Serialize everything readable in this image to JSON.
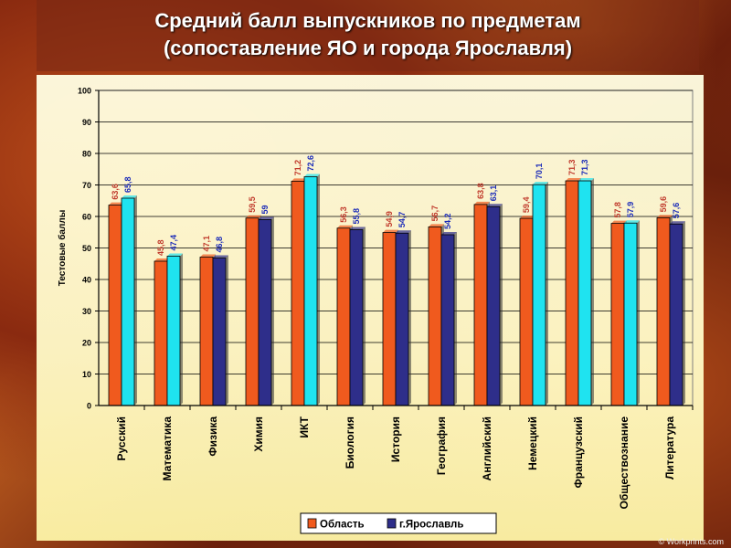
{
  "slide": {
    "title_line1": "Средний балл выпускников по предметам",
    "title_line2": "(сопоставление ЯО и города Ярославля)",
    "watermark": "© Workprints.com"
  },
  "chart_data": {
    "type": "bar",
    "ylabel": "Тестовые баллы",
    "xlabel": "",
    "ylim": [
      0,
      100
    ],
    "yticks": [
      0,
      10,
      20,
      30,
      40,
      50,
      60,
      70,
      80,
      90,
      100
    ],
    "grid": true,
    "legend_position": "bottom",
    "categories": [
      "Русский",
      "Математика",
      "Физика",
      "Химия",
      "ИКТ",
      "Биология",
      "История",
      "География",
      "Английский",
      "Немецкий",
      "Французский",
      "Обществознание",
      "Литература"
    ],
    "series": [
      {
        "name": "Область",
        "color": "#f05a1e",
        "label_color": "#c0392b",
        "values": [
          63.6,
          45.8,
          47.1,
          59.5,
          71.2,
          56.3,
          54.9,
          56.7,
          63.8,
          59.4,
          71.3,
          57.8,
          59.6
        ],
        "labels": [
          "63,6",
          "45,8",
          "47,1",
          "59,5",
          "71,2",
          "56,3",
          "54,9",
          "56,7",
          "63,8",
          "59,4",
          "71,3",
          "57,8",
          "59,6"
        ]
      },
      {
        "name": "г.Ярославль",
        "colors": [
          "#1fe3f0",
          "#1fe3f0",
          "#2e2e8a",
          "#2e2e8a",
          "#1fe3f0",
          "#2e2e8a",
          "#2e2e8a",
          "#2e2e8a",
          "#2e2e8a",
          "#1fe3f0",
          "#1fe3f0",
          "#1fe3f0",
          "#2e2e8a"
        ],
        "color": "#2e2e8a",
        "label_color": "#1a2ab8",
        "values": [
          65.8,
          47.4,
          46.8,
          59,
          72.6,
          55.8,
          54.7,
          54.2,
          63.1,
          70.1,
          71.3,
          57.9,
          57.6
        ],
        "labels": [
          "65,8",
          "47,4",
          "46,8",
          "59",
          "72,6",
          "55,8",
          "54,7",
          "54,2",
          "63,1",
          "70,1",
          "71,3",
          "57,9",
          "57,6"
        ]
      }
    ]
  }
}
